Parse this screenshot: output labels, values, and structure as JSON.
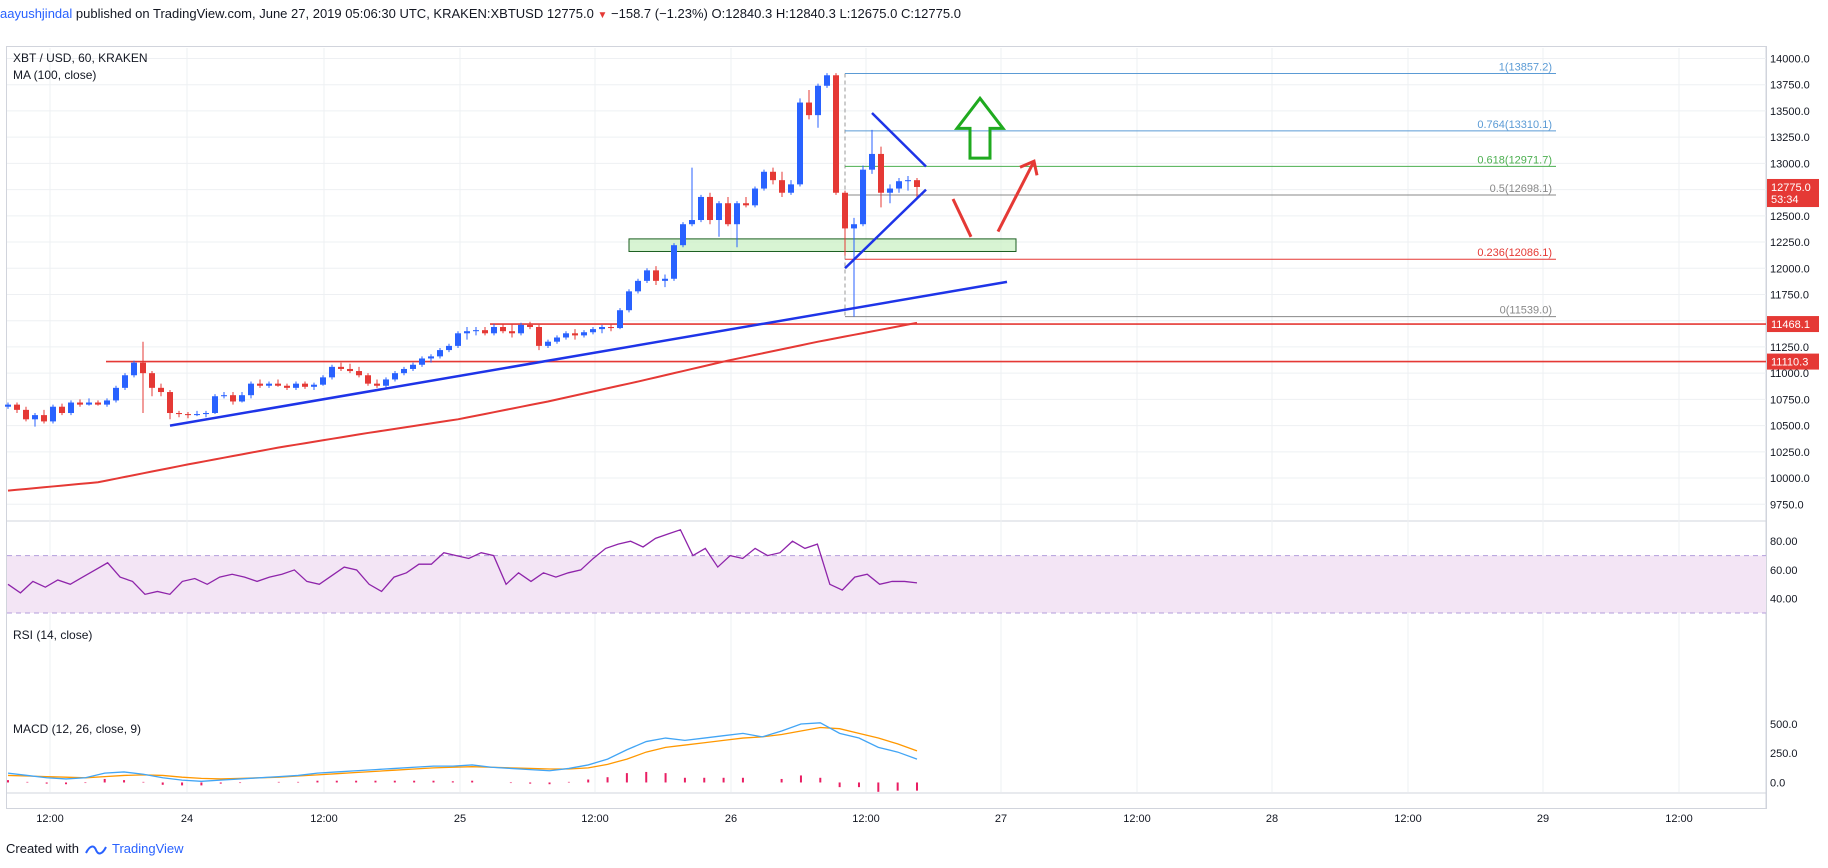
{
  "header": {
    "author": "aayushjindal",
    "published": "published on TradingView.com, June 27, 2019 05:06:30 UTC",
    "symbol": "KRAKEN:XBTUSD",
    "last": "12775.0",
    "change": "−158.7 (−1.23%)",
    "o_label": "O:",
    "o": "12840.3",
    "h_label": "H:",
    "h": "12840.3",
    "l_label": "L:",
    "l": "12675.0",
    "c_label": "C:",
    "c": "12775.0"
  },
  "legend": {
    "main_title": "XBT / USD, 60, KRAKEN",
    "ma_title": "MA (100, close)",
    "rsi_title": "RSI (14, close)",
    "macd_title": "MACD (12, 26, close, 9)"
  },
  "footer": {
    "created_with": "Created with",
    "brand": "TradingView"
  },
  "colors": {
    "up": "#2962ff",
    "down": "#e53935",
    "ma": "#e53935",
    "trend": "#1e34e8",
    "fib_blue": "#5b9bd5",
    "fib_green": "#4caf50",
    "fib_gray": "#888888",
    "fib_red": "#e53935",
    "rsi_line": "#8e24aa",
    "rsi_band": "#f3e5f5",
    "macd_line": "#42a5f5",
    "signal_line": "#ff9800",
    "hist": "#e91e63",
    "zone_fill": "#c8f0c0",
    "zone_border": "#1b5e20",
    "arrow_green": "#1faa1f",
    "arrow_red": "#e53935"
  },
  "chart_data": [
    {
      "type": "candlestick",
      "title": "XBT / USD, 60, KRAKEN",
      "ylim": [
        9600,
        14100
      ],
      "x_ticks": [
        "12:00",
        "24",
        "12:00",
        "25",
        "12:00",
        "26",
        "12:00",
        "27",
        "12:00",
        "28",
        "12:00",
        "29",
        "12:00"
      ],
      "y_ticks": [
        9750,
        10000,
        10250,
        10500,
        10750,
        11000,
        11250,
        11500,
        11750,
        12000,
        12250,
        12500,
        12750,
        13000,
        13250,
        13500,
        13750,
        14000
      ],
      "price_labels": [
        {
          "value": 12775.0,
          "text": "12775.0",
          "color": "#e53935"
        },
        {
          "value": 12660,
          "text": "53:34",
          "color": "#e53935"
        },
        {
          "value": 11468.1,
          "text": "11468.1",
          "color": "#e53935"
        },
        {
          "value": 11110.3,
          "text": "11110.3",
          "color": "#e53935"
        }
      ],
      "fibonacci": [
        {
          "level": "1",
          "price": 13857.2,
          "label": "1(13857.2)",
          "color": "#5b9bd5"
        },
        {
          "level": "0.764",
          "price": 13310.1,
          "label": "0.764(13310.1)",
          "color": "#5b9bd5"
        },
        {
          "level": "0.618",
          "price": 12971.7,
          "label": "0.618(12971.7)",
          "color": "#4caf50"
        },
        {
          "level": "0.5",
          "price": 12698.1,
          "label": "0.5(12698.1)",
          "color": "#888888"
        },
        {
          "level": "0.236",
          "price": 12086.1,
          "label": "0.236(12086.1)",
          "color": "#e53935"
        },
        {
          "level": "0",
          "price": 11539.0,
          "label": "0(11539.0)",
          "color": "#888888"
        }
      ],
      "horizontal_levels": [
        11468.1,
        11110.3
      ],
      "candles": [
        [
          0,
          10680,
          10720,
          10660,
          10700
        ],
        [
          1,
          10700,
          10720,
          10620,
          10650
        ],
        [
          2,
          10650,
          10680,
          10540,
          10560
        ],
        [
          3,
          10560,
          10620,
          10490,
          10600
        ],
        [
          4,
          10600,
          10650,
          10520,
          10540
        ],
        [
          5,
          10540,
          10700,
          10520,
          10680
        ],
        [
          6,
          10680,
          10710,
          10600,
          10620
        ],
        [
          7,
          10620,
          10740,
          10600,
          10720
        ],
        [
          8,
          10720,
          10750,
          10680,
          10700
        ],
        [
          9,
          10700,
          10760,
          10690,
          10720
        ],
        [
          10,
          10720,
          10740,
          10690,
          10700
        ],
        [
          11,
          10700,
          10760,
          10680,
          10740
        ],
        [
          12,
          10740,
          10880,
          10720,
          10860
        ],
        [
          13,
          10860,
          11000,
          10840,
          10980
        ],
        [
          14,
          10980,
          11120,
          10960,
          11100
        ],
        [
          15,
          11100,
          11300,
          10620,
          11000
        ],
        [
          16,
          11000,
          11020,
          10780,
          10860
        ],
        [
          17,
          10860,
          10900,
          10780,
          10820
        ],
        [
          18,
          10820,
          10840,
          10560,
          10620
        ],
        [
          19,
          10620,
          10640,
          10580,
          10610
        ],
        [
          20,
          10610,
          10630,
          10570,
          10600
        ],
        [
          21,
          10600,
          10640,
          10590,
          10610
        ],
        [
          22,
          10610,
          10640,
          10580,
          10620
        ],
        [
          23,
          10620,
          10800,
          10610,
          10780
        ],
        [
          24,
          10780,
          10820,
          10760,
          10790
        ],
        [
          25,
          10790,
          10820,
          10700,
          10730
        ],
        [
          26,
          10730,
          10820,
          10720,
          10790
        ],
        [
          27,
          10790,
          10920,
          10760,
          10900
        ],
        [
          28,
          10900,
          10940,
          10860,
          10880
        ],
        [
          29,
          10880,
          10920,
          10860,
          10900
        ],
        [
          30,
          10900,
          10940,
          10870,
          10880
        ],
        [
          31,
          10880,
          10900,
          10840,
          10860
        ],
        [
          32,
          10860,
          10920,
          10840,
          10900
        ],
        [
          33,
          10900,
          10920,
          10850,
          10870
        ],
        [
          34,
          10870,
          10910,
          10840,
          10890
        ],
        [
          35,
          10890,
          10980,
          10880,
          10960
        ],
        [
          36,
          10960,
          11080,
          10940,
          11060
        ],
        [
          37,
          11060,
          11100,
          11020,
          11040
        ],
        [
          38,
          11040,
          11090,
          11000,
          11020
        ],
        [
          39,
          11020,
          11060,
          10960,
          10980
        ],
        [
          40,
          10980,
          11000,
          10880,
          10900
        ],
        [
          41,
          10900,
          10940,
          10860,
          10880
        ],
        [
          42,
          10880,
          10960,
          10860,
          10940
        ],
        [
          43,
          10940,
          11020,
          10920,
          11000
        ],
        [
          44,
          11000,
          11060,
          10980,
          11040
        ],
        [
          45,
          11040,
          11100,
          11020,
          11080
        ],
        [
          46,
          11080,
          11160,
          11060,
          11140
        ],
        [
          47,
          11140,
          11180,
          11100,
          11160
        ],
        [
          48,
          11160,
          11240,
          11140,
          11220
        ],
        [
          49,
          11220,
          11280,
          11200,
          11260
        ],
        [
          50,
          11260,
          11400,
          11240,
          11380
        ],
        [
          51,
          11380,
          11440,
          11320,
          11400
        ],
        [
          52,
          11400,
          11440,
          11360,
          11410
        ],
        [
          53,
          11410,
          11440,
          11360,
          11380
        ],
        [
          54,
          11380,
          11470,
          11360,
          11440
        ],
        [
          55,
          11440,
          11470,
          11380,
          11400
        ],
        [
          56,
          11400,
          11470,
          11340,
          11380
        ],
        [
          57,
          11380,
          11480,
          11360,
          11460
        ],
        [
          58,
          11460,
          11490,
          11420,
          11440
        ],
        [
          59,
          11440,
          11460,
          11220,
          11260
        ],
        [
          60,
          11260,
          11320,
          11240,
          11300
        ],
        [
          61,
          11300,
          11360,
          11280,
          11340
        ],
        [
          62,
          11340,
          11400,
          11320,
          11380
        ],
        [
          63,
          11380,
          11420,
          11320,
          11360
        ],
        [
          64,
          11360,
          11410,
          11340,
          11390
        ],
        [
          65,
          11390,
          11440,
          11370,
          11420
        ],
        [
          66,
          11420,
          11460,
          11380,
          11440
        ],
        [
          67,
          11440,
          11470,
          11400,
          11430
        ],
        [
          68,
          11430,
          11620,
          11420,
          11600
        ],
        [
          69,
          11600,
          11800,
          11580,
          11780
        ],
        [
          70,
          11780,
          11900,
          11760,
          11880
        ],
        [
          71,
          11880,
          12000,
          11860,
          11980
        ],
        [
          72,
          11980,
          12020,
          11840,
          11880
        ],
        [
          73,
          11880,
          11940,
          11820,
          11900
        ],
        [
          74,
          11900,
          12240,
          11880,
          12220
        ],
        [
          75,
          12220,
          12440,
          12200,
          12420
        ],
        [
          76,
          12420,
          12960,
          12400,
          12460
        ],
        [
          77,
          12460,
          12700,
          12440,
          12680
        ],
        [
          78,
          12680,
          12720,
          12420,
          12460
        ],
        [
          79,
          12460,
          12640,
          12300,
          12620
        ],
        [
          80,
          12620,
          12680,
          12400,
          12420
        ],
        [
          81,
          12420,
          12640,
          12200,
          12620
        ],
        [
          82,
          12620,
          12680,
          12580,
          12600
        ],
        [
          83,
          12600,
          12780,
          12580,
          12760
        ],
        [
          84,
          12760,
          12940,
          12740,
          12920
        ],
        [
          85,
          12920,
          12960,
          12800,
          12840
        ],
        [
          86,
          12840,
          12920,
          12680,
          12720
        ],
        [
          87,
          12720,
          12840,
          12700,
          12800
        ],
        [
          88,
          12800,
          13620,
          12780,
          13580
        ],
        [
          89,
          13580,
          13700,
          13420,
          13460
        ],
        [
          90,
          13460,
          13760,
          13340,
          13740
        ],
        [
          91,
          13740,
          13860,
          13720,
          13840
        ],
        [
          92,
          13840,
          13860,
          12700,
          12720
        ],
        [
          93,
          12720,
          12740,
          12120,
          12380
        ],
        [
          94,
          12380,
          12480,
          11539,
          12420
        ],
        [
          95,
          12420,
          12980,
          12400,
          12940
        ],
        [
          96,
          12940,
          13320,
          12900,
          13090
        ],
        [
          97,
          13090,
          13160,
          12580,
          12720
        ],
        [
          98,
          12720,
          12800,
          12620,
          12760
        ],
        [
          99,
          12760,
          12860,
          12720,
          12830
        ],
        [
          100,
          12830,
          12880,
          12740,
          12840
        ],
        [
          101,
          12840,
          12860,
          12675,
          12775
        ]
      ],
      "ma100": [
        [
          0,
          9880
        ],
        [
          10,
          9960
        ],
        [
          20,
          10130
        ],
        [
          30,
          10290
        ],
        [
          40,
          10430
        ],
        [
          50,
          10560
        ],
        [
          60,
          10730
        ],
        [
          70,
          10920
        ],
        [
          80,
          11120
        ],
        [
          90,
          11300
        ],
        [
          101,
          11480
        ]
      ],
      "annotations": {
        "support_zone": {
          "start_bar": 69,
          "end_bar": 112,
          "low": 12160,
          "high": 12280
        },
        "trend_lines": [
          {
            "from": [
              18,
              10500
            ],
            "to": [
              111,
              11870
            ]
          },
          {
            "from": [
              93,
              12000
            ],
            "to": [
              102,
              12750
            ]
          },
          {
            "from": [
              96,
              13480
            ],
            "to": [
              102,
              12970
            ]
          }
        ],
        "fib_anchor_bar": 93,
        "fib_end_bar": 172,
        "arrow_up_green": {
          "bar": 108,
          "base": 13050,
          "top": 13620
        },
        "arrow_down_red": {
          "from": [
            105,
            12660
          ],
          "to": [
            107,
            12300
          ]
        },
        "arrow_up_red": {
          "from": [
            110,
            12350
          ],
          "to": [
            114,
            13020
          ]
        }
      }
    },
    {
      "type": "line",
      "title": "RSI (14, close)",
      "ylim": [
        30,
        92
      ],
      "y_ticks": [
        40.0,
        60.0,
        80.0
      ],
      "band": [
        30,
        70
      ],
      "values": [
        50,
        44,
        52,
        48,
        53,
        50,
        55,
        60,
        65,
        55,
        52,
        43,
        45,
        43,
        52,
        54,
        50,
        55,
        57,
        55,
        52,
        55,
        57,
        60,
        52,
        50,
        56,
        62,
        60,
        50,
        45,
        55,
        58,
        64,
        64,
        72,
        70,
        68,
        72,
        70,
        50,
        58,
        52,
        58,
        55,
        58,
        60,
        68,
        75,
        78,
        80,
        76,
        82,
        85,
        88,
        70,
        75,
        62,
        70,
        68,
        75,
        70,
        72,
        80,
        75,
        78,
        50,
        46,
        55,
        57,
        50,
        52,
        52,
        51
      ]
    },
    {
      "type": "line",
      "title": "MACD (12, 26, close, 9)",
      "ylim": [
        -150,
        560
      ],
      "y_ticks": [
        0.0,
        250.0,
        500.0
      ],
      "macd": [
        80,
        60,
        40,
        30,
        40,
        80,
        90,
        70,
        40,
        20,
        10,
        20,
        30,
        40,
        50,
        60,
        80,
        90,
        100,
        110,
        120,
        130,
        140,
        140,
        150,
        130,
        120,
        110,
        100,
        120,
        150,
        200,
        280,
        350,
        380,
        360,
        380,
        400,
        420,
        390,
        440,
        500,
        510,
        420,
        380,
        300,
        260,
        200
      ],
      "signal": [
        60,
        55,
        50,
        45,
        40,
        50,
        60,
        65,
        60,
        45,
        35,
        30,
        35,
        40,
        45,
        55,
        65,
        75,
        85,
        95,
        105,
        115,
        125,
        130,
        135,
        130,
        125,
        120,
        115,
        115,
        125,
        155,
        200,
        260,
        300,
        320,
        340,
        360,
        380,
        390,
        410,
        440,
        470,
        460,
        420,
        380,
        330,
        270
      ],
      "histogram": [
        20,
        5,
        -10,
        -15,
        -5,
        30,
        20,
        5,
        -20,
        -25,
        -25,
        -10,
        -5,
        0,
        5,
        5,
        15,
        15,
        15,
        15,
        15,
        15,
        15,
        10,
        15,
        0,
        -5,
        -10,
        -15,
        5,
        25,
        45,
        80,
        90,
        80,
        40,
        40,
        40,
        40,
        0,
        30,
        60,
        40,
        -40,
        -40,
        -80,
        -70,
        -70
      ]
    }
  ]
}
